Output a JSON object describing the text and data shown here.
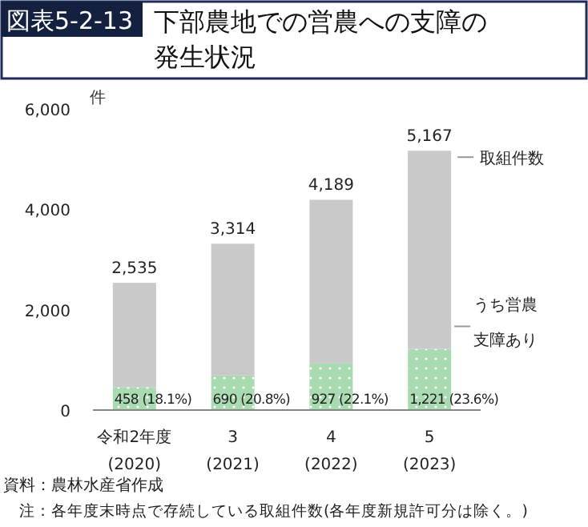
{
  "chart_data": {
    "type": "bar",
    "title": "図表5-2-13 下部農地での営農への支障の発生状況",
    "ylabel": "件",
    "categories": [
      "令和2年度\n(2020)",
      "3\n(2021)",
      "4\n(2022)",
      "5\n(2023)"
    ],
    "stacked": true,
    "series": [
      {
        "name": "うち営農支障あり",
        "color": "#a9dbb1",
        "values": [
          458,
          690,
          927,
          1221
        ],
        "value_labels": [
          "458 (18.1%)",
          "690 (20.8%)",
          "927 (22.1%)",
          "1,221 (23.6%)"
        ]
      },
      {
        "name": "取組件数",
        "color": "#c9c9c9",
        "values": [
          2077,
          2624,
          3262,
          3946
        ]
      }
    ],
    "totals": [
      "2,535",
      "3,314",
      "4,189",
      "5,167"
    ],
    "ylim": [
      0,
      6000
    ],
    "yticks": [
      {
        "value": 0,
        "label": "0"
      },
      {
        "value": 2000,
        "label": "2,000"
      },
      {
        "value": 4000,
        "label": "4,000"
      },
      {
        "value": 6000,
        "label": "6,000"
      }
    ],
    "grid": false,
    "annotations": [
      "資料：農林水産省作成",
      "注：各年度末時点で存続している取組件数(各年度新規許可分は除く。)"
    ]
  }
}
